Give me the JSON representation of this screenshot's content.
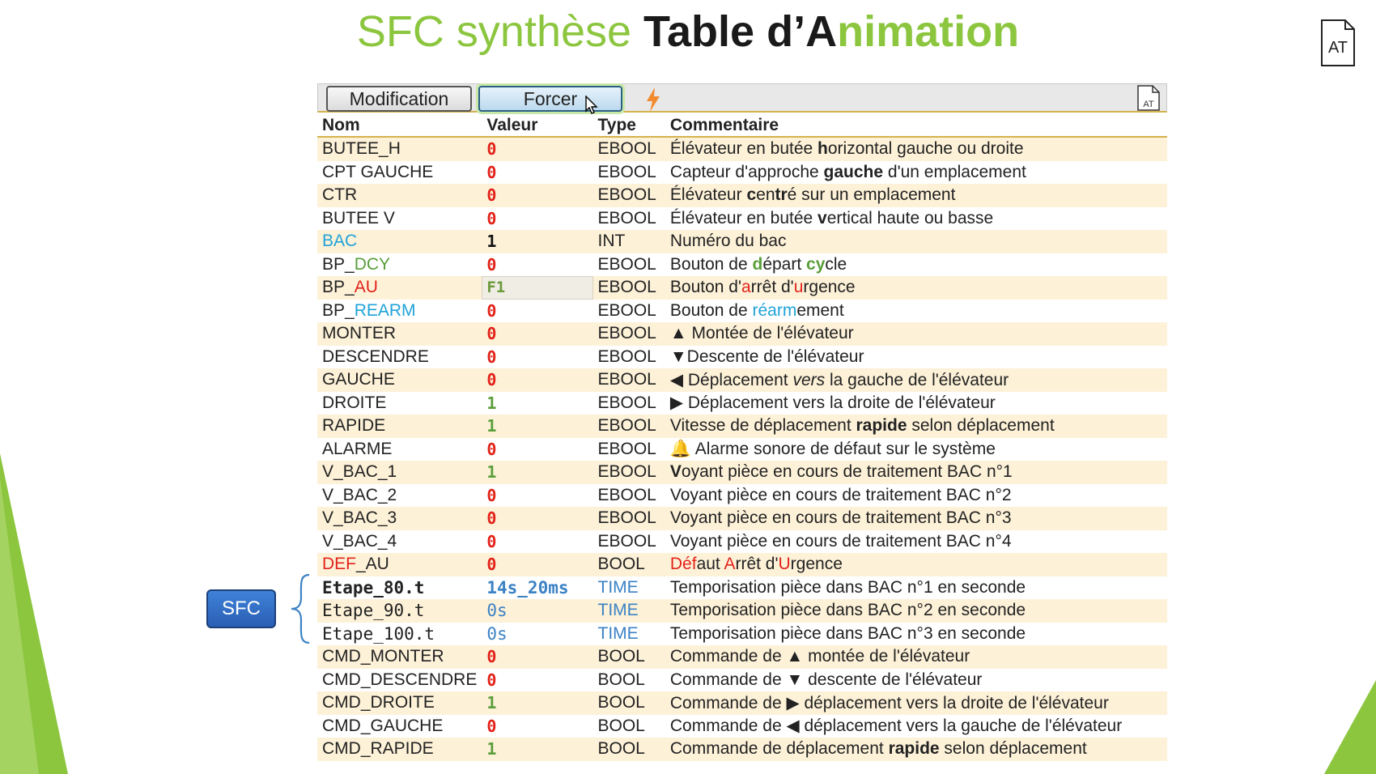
{
  "title": {
    "part1": "SFC synthèse ",
    "part2": "Table d’",
    "part3": "A",
    "part4": "nimation"
  },
  "doc_icon_label": "AT",
  "toolbar": {
    "modification_label": "Modification",
    "forcer_label": "Forcer",
    "doc_label": "AT"
  },
  "columns": {
    "nom": "Nom",
    "valeur": "Valeur",
    "type": "Type",
    "commentaire": "Commentaire"
  },
  "rows": [
    {
      "nom": "BUTEE_H",
      "valeur": "0",
      "type": "EBOOL",
      "c": [
        "Élévateur en butée ",
        "h",
        "orizontal gauche ou droite"
      ]
    },
    {
      "nom": "CPT GAUCHE",
      "valeur": "0",
      "type": "EBOOL",
      "c": [
        "Capteur d'approche ",
        "gauche",
        " d'un emplacement"
      ]
    },
    {
      "nom": "CTR",
      "valeur": "0",
      "type": "EBOOL",
      "c": [
        "Élévateur ",
        "c",
        "en",
        "tr",
        "é sur un emplacement"
      ]
    },
    {
      "nom": "BUTEE V",
      "valeur": "0",
      "type": "EBOOL",
      "c": [
        "Élévateur en butée ",
        "v",
        "ertical haute ou basse"
      ]
    },
    {
      "nom": "BAC",
      "valeur": "1",
      "type": "INT",
      "c": [
        "Numéro du bac"
      ]
    },
    {
      "nom_a": "BP_",
      "nom_b": "DCY",
      "valeur": "0",
      "type": "EBOOL",
      "c": [
        "Bouton de ",
        "d",
        "épart ",
        "cy",
        "cle"
      ]
    },
    {
      "nom_a": "BP_",
      "nom_b": "AU",
      "valeur": "F1",
      "type": "EBOOL",
      "c": [
        "Bouton d'",
        "a",
        "rrêt d'",
        "u",
        "rgence"
      ]
    },
    {
      "nom_a": "BP_",
      "nom_b": "REARM",
      "valeur": "0",
      "type": "EBOOL",
      "c": [
        "Bouton de ",
        "réarm",
        "ement"
      ]
    },
    {
      "nom": "MONTER",
      "valeur": "0",
      "type": "EBOOL",
      "c": [
        "▲ Montée de l'élévateur"
      ]
    },
    {
      "nom": "DESCENDRE",
      "valeur": "0",
      "type": "EBOOL",
      "c": [
        "▼Descente de l'élévateur"
      ]
    },
    {
      "nom": "GAUCHE",
      "valeur": "0",
      "type": "EBOOL",
      "c": [
        "◀ Déplacement ",
        "vers",
        " la gauche de l'élévateur"
      ]
    },
    {
      "nom": "DROITE",
      "valeur": "1",
      "type": "EBOOL",
      "c": [
        "▶ Déplacement vers la droite de l'élévateur"
      ]
    },
    {
      "nom": "RAPIDE",
      "valeur": "1",
      "type": "EBOOL",
      "c": [
        "Vitesse de déplacement ",
        "rapide",
        " selon déplacement"
      ]
    },
    {
      "nom": "ALARME",
      "valeur": "0",
      "type": "EBOOL",
      "c": [
        "🔔 Alarme sonore de défaut sur le système"
      ]
    },
    {
      "nom": "V_BAC_1",
      "valeur": "1",
      "type": "EBOOL",
      "c": [
        "V",
        "oyant pièce en cours de traitement BAC n°1"
      ]
    },
    {
      "nom": "V_BAC_2",
      "valeur": "0",
      "type": "EBOOL",
      "c": [
        "Voyant pièce en cours de traitement BAC n°2"
      ]
    },
    {
      "nom": "V_BAC_3",
      "valeur": "0",
      "type": "EBOOL",
      "c": [
        "Voyant pièce en cours de traitement BAC n°3"
      ]
    },
    {
      "nom": "V_BAC_4",
      "valeur": "0",
      "type": "EBOOL",
      "c": [
        "Voyant pièce en cours de traitement BAC n°4"
      ]
    },
    {
      "nom_a": "DEF",
      "nom_b": "_AU",
      "valeur": "0",
      "type": "BOOL",
      "c": [
        "Déf",
        "aut ",
        "A",
        "rrêt d'",
        "U",
        "rgence"
      ]
    },
    {
      "nom": "Etape_80.t",
      "valeur": "14s_20ms",
      "type": "TIME",
      "c": [
        "Temporisation pièce dans BAC n°1 en seconde"
      ]
    },
    {
      "nom": "Etape_90.t",
      "valeur": "0s",
      "type": "TIME",
      "c": [
        "Temporisation pièce dans BAC n°2 en seconde"
      ]
    },
    {
      "nom": "Etape_100.t",
      "valeur": "0s",
      "type": "TIME",
      "c": [
        "Temporisation pièce dans BAC n°3 en seconde"
      ]
    },
    {
      "nom": "CMD_MONTER",
      "valeur": "0",
      "type": "BOOL",
      "c": [
        "Commande de ▲ montée de l'élévateur"
      ]
    },
    {
      "nom": "CMD_DESCENDRE",
      "valeur": "0",
      "type": "BOOL",
      "c": [
        "Commande de ▼ descente de l'élévateur"
      ]
    },
    {
      "nom": "CMD_DROITE",
      "valeur": "1",
      "type": "BOOL",
      "c": [
        "Commande de ▶ déplacement vers la droite de l'élévateur"
      ]
    },
    {
      "nom": "CMD_GAUCHE",
      "valeur": "0",
      "type": "BOOL",
      "c": [
        "Commande de ◀ déplacement vers la gauche de l'élévateur"
      ]
    },
    {
      "nom": "CMD_RAPIDE",
      "valeur": "1",
      "type": "BOOL",
      "c": [
        "Commande de déplacement ",
        "rapide",
        " selon déplacement"
      ]
    }
  ],
  "sfc_label": "SFC",
  "colors": {
    "title_green": "#8cc63f",
    "value_red": "#e2231a",
    "value_green": "#5a9e3a",
    "row_stripe": "#fdf1d8",
    "time_blue": "#3b82c4",
    "accent_blue": "#1fa3d8"
  }
}
